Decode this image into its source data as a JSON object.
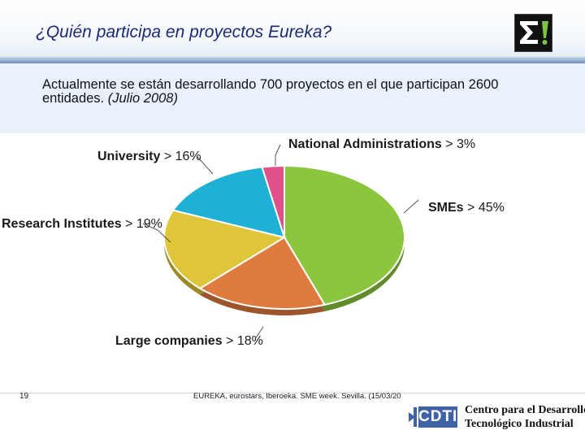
{
  "header": {
    "title": "¿Quién participa en proyectos Eureka?"
  },
  "subtitle": {
    "text": "Actualmente se están desarrollando 700 proyectos en el que participan 2600 entidades.",
    "date": "(Julio 2008)"
  },
  "chart_data": {
    "type": "pie",
    "title": "",
    "slices": [
      {
        "label": "SMEs",
        "value": 45,
        "pct_text": "45%",
        "color": "#8cc63f"
      },
      {
        "label": "Large companies",
        "value": 18,
        "pct_text": "18%",
        "color": "#e07b3f"
      },
      {
        "label": "Research Institutes",
        "value": 19,
        "pct_text": "19%",
        "color": "#dfc53a"
      },
      {
        "label": "University",
        "value": 16,
        "pct_text": "16%",
        "color": "#1fb0d6"
      },
      {
        "label": "National Administrations",
        "value": 3,
        "pct_text": "3%",
        "color": "#e0508a"
      }
    ],
    "legend": "none"
  },
  "footer": {
    "page_number": "19",
    "text": "EUREKA, eurostars, Iberoeka. SME week. Sevilla. (15/03/20",
    "cdti_logo": "CDTI",
    "cdti_name_line1": "Centro para el Desarrollo",
    "cdti_name_line2": "Tecnológico Industrial"
  },
  "icons": {
    "top_logo": "sigma-exclamation-logo",
    "cdti_logo": "cdti-logo"
  }
}
